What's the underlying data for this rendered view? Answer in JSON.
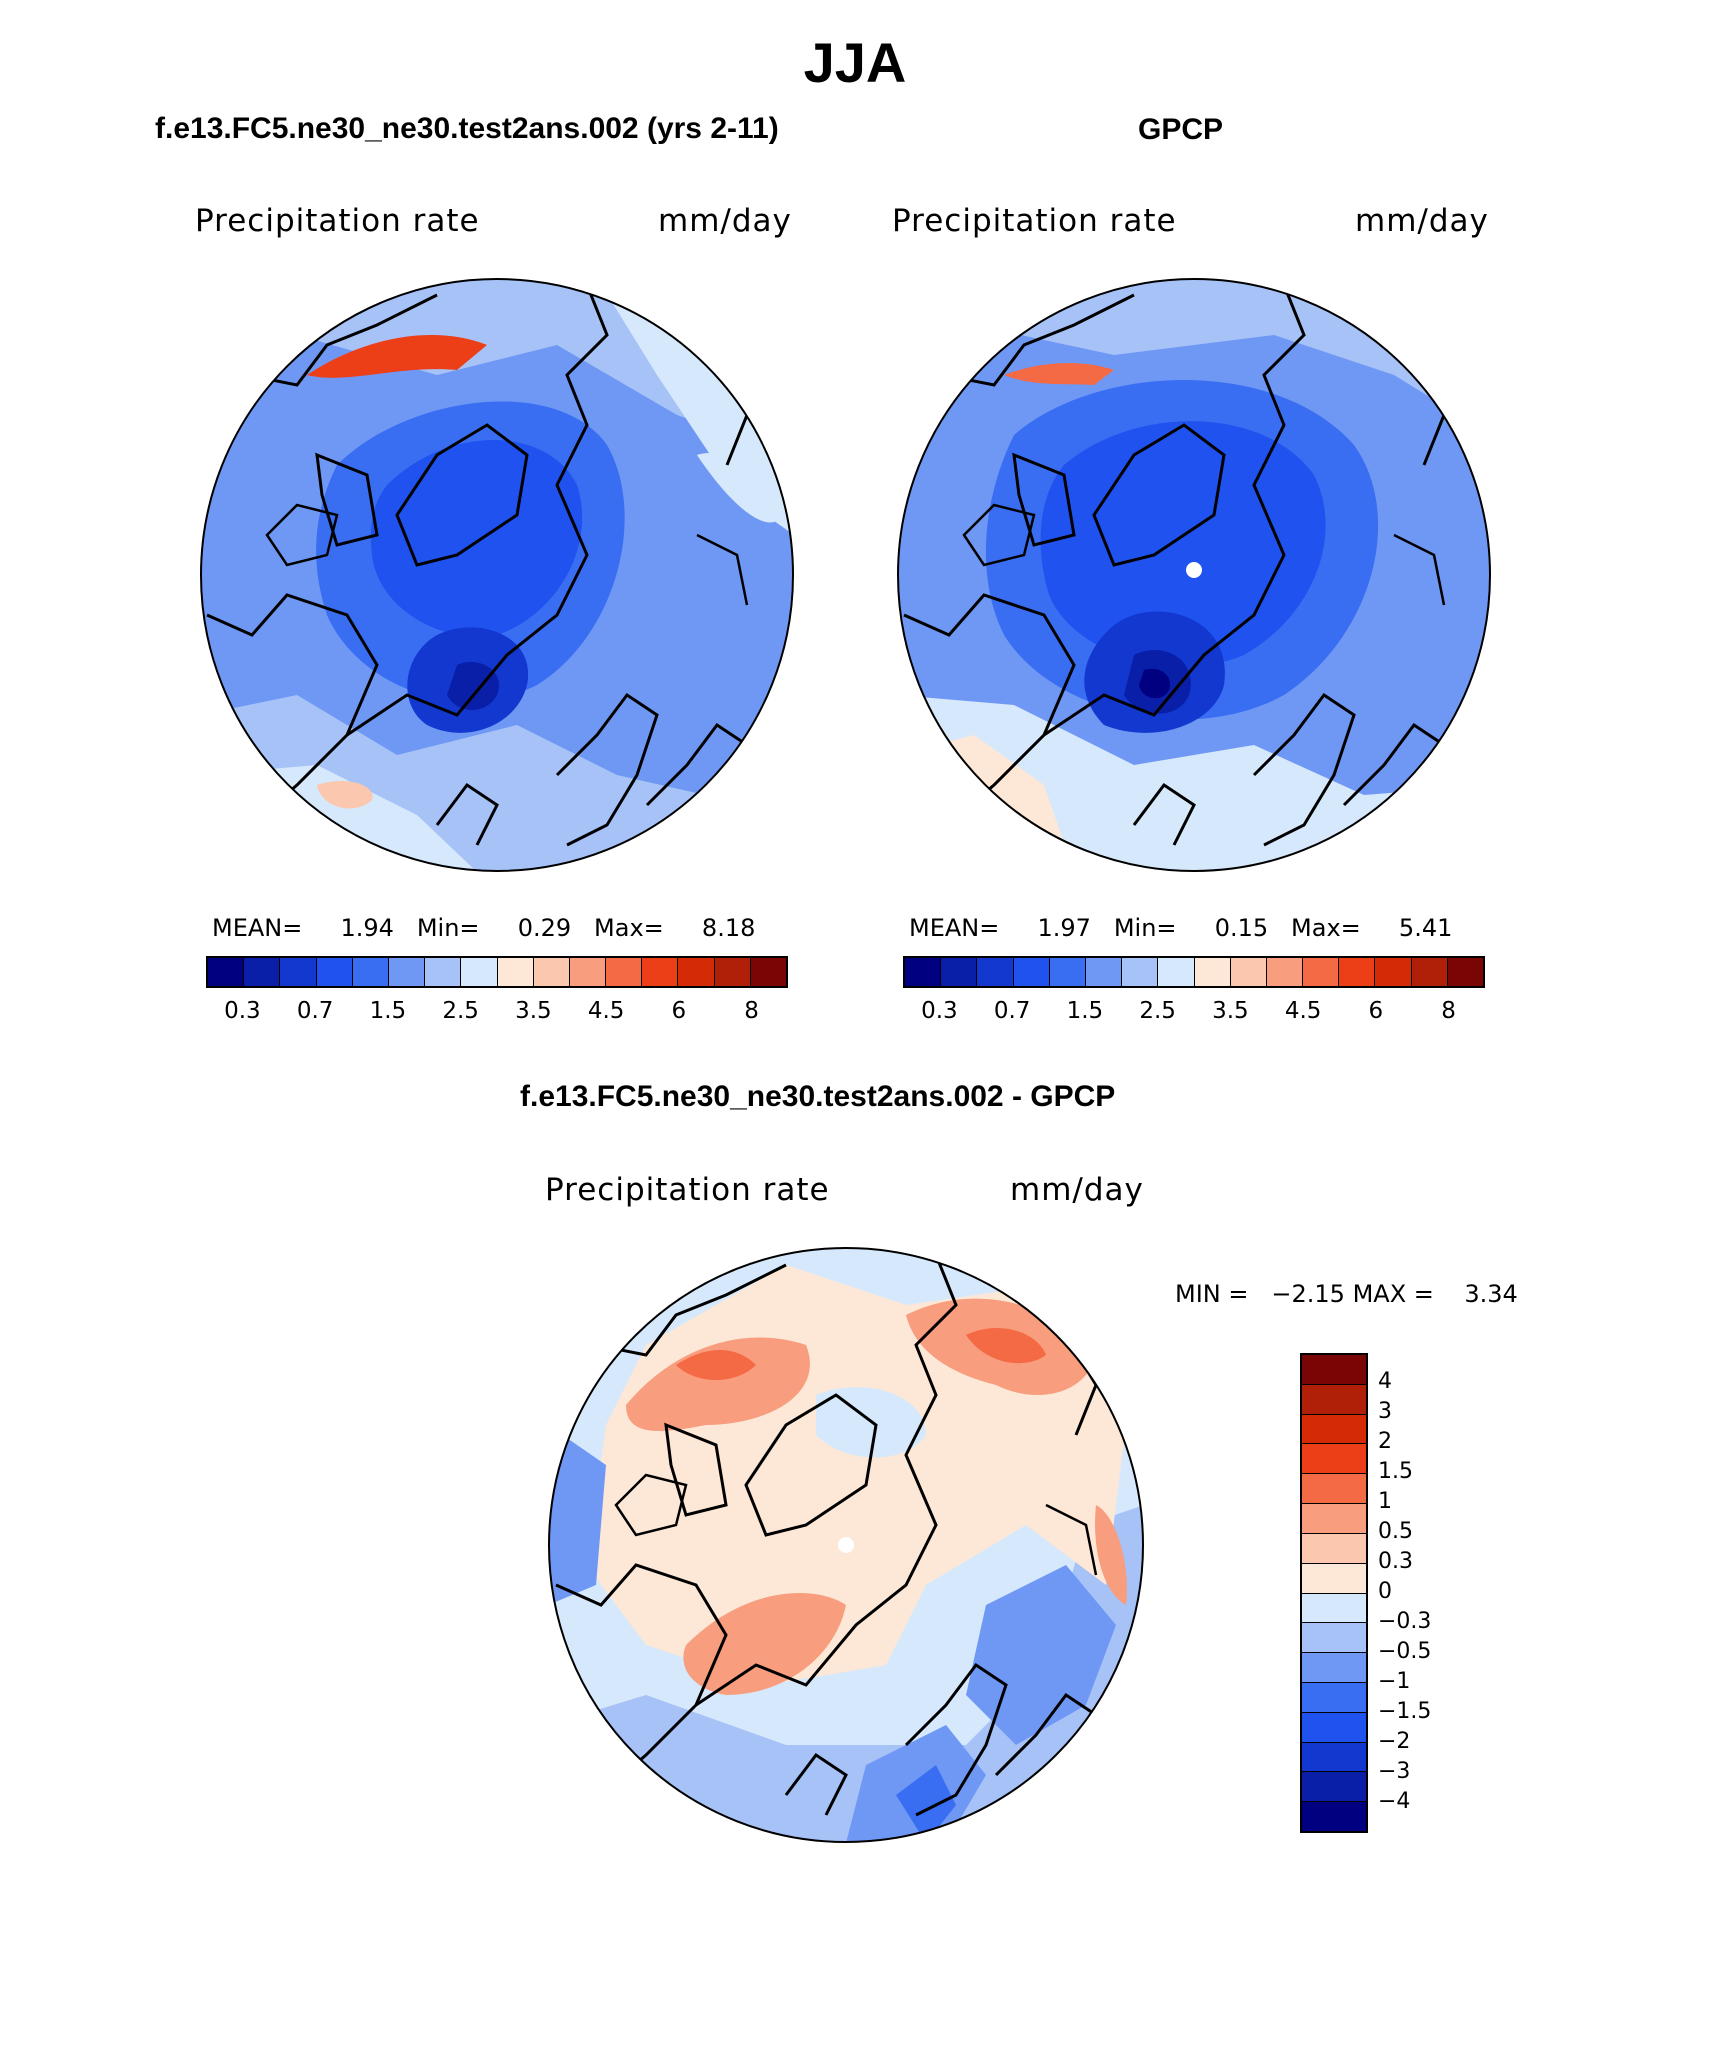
{
  "figure": {
    "title": "JJA",
    "panels": [
      {
        "id": "model",
        "subtitle": "f.e13.FC5.ne30_ne30.test2ans.002 (yrs 2-11)",
        "variable": "Precipitation rate",
        "units": "mm/day",
        "stats": {
          "mean_label": "MEAN=",
          "mean": "1.94",
          "min_label": "Min=",
          "min": "0.29",
          "max_label": "Max=",
          "max": "8.18"
        }
      },
      {
        "id": "obs",
        "subtitle": "GPCP",
        "variable": "Precipitation rate",
        "units": "mm/day",
        "stats": {
          "mean_label": "MEAN=",
          "mean": "1.97",
          "min_label": "Min=",
          "min": "0.15",
          "max_label": "Max=",
          "max": "5.41"
        }
      },
      {
        "id": "diff",
        "subtitle": "f.e13.FC5.ne30_ne30.test2ans.002 - GPCP",
        "variable": "Precipitation rate",
        "units": "mm/day",
        "stats": {
          "min_label": "MIN =",
          "min": "−2.15",
          "max_label": "MAX =",
          "max": "3.34"
        }
      }
    ],
    "abs_colorbar": {
      "ticks": [
        "0.3",
        "0.7",
        "1.5",
        "2.5",
        "3.5",
        "4.5",
        "6",
        "8"
      ],
      "colors": [
        "#000080",
        "#0a1fa8",
        "#1238d0",
        "#1f52ee",
        "#3a6ef2",
        "#6e98f4",
        "#a6c2f7",
        "#d6e8fb",
        "#fde8d8",
        "#fbc7ae",
        "#f89d7e",
        "#f46a45",
        "#ec3e17",
        "#d42a06",
        "#b01f08",
        "#7a0505"
      ]
    },
    "diff_colorbar": {
      "ticks": [
        "4",
        "3",
        "2",
        "1.5",
        "1",
        "0.5",
        "0.3",
        "0",
        "−0.3",
        "−0.5",
        "−1",
        "−1.5",
        "−2",
        "−3",
        "−4"
      ],
      "colors": [
        "#7a0505",
        "#b01f08",
        "#d42a06",
        "#ec3e17",
        "#f46a45",
        "#f89d7e",
        "#fbc7ae",
        "#fde8d8",
        "#d6e8fb",
        "#a6c2f7",
        "#6e98f4",
        "#3a6ef2",
        "#1f52ee",
        "#1238d0",
        "#0a1fa8",
        "#000080"
      ]
    }
  }
}
